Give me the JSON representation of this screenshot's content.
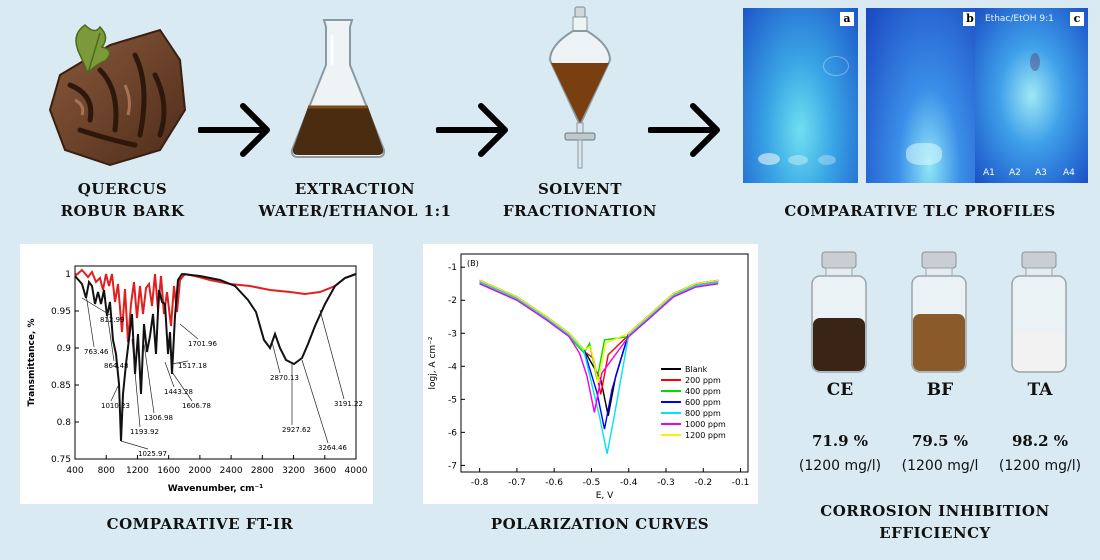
{
  "steps": [
    {
      "line1": "QUERCUS",
      "line2": "ROBUR BARK"
    },
    {
      "line1": "EXTRACTION",
      "line2": "WATER/ETHANOL 1:1"
    },
    {
      "line1": "SOLVENT",
      "line2": "FRACTIONATION"
    }
  ],
  "tlc": {
    "caption": "COMPARATIVE TLC PROFILES",
    "panels": [
      "a",
      "b",
      "c"
    ],
    "solvent": "Ethac/EtOH  9:1",
    "lanes": [
      "A1",
      "A2",
      "A3",
      "A4"
    ]
  },
  "ftir": {
    "caption": "COMPARATIVE FT-IR",
    "xlabel": "Wavenumber, cm⁻¹",
    "ylabel": "Transmittance, %",
    "xticks": [
      "400",
      "800",
      "1200",
      "1600",
      "2000",
      "2400",
      "2800",
      "3200",
      "3600",
      "4000"
    ],
    "yticks": [
      "1",
      "0.95",
      "0.9",
      "0.85",
      "0.8",
      "0.75"
    ],
    "annotations": [
      "812.99",
      "763.46",
      "864.48",
      "1010.23",
      "1193.92",
      "1306.98",
      "1025.97",
      "1443.28",
      "1517.18",
      "1606.78",
      "1701.96",
      "2870.13",
      "2927.62",
      "3264.46",
      "3191.22"
    ],
    "colors": {
      "black": "#111111",
      "red": "#e02020"
    }
  },
  "polar": {
    "caption": "POLARIZATION CURVES",
    "panel": "(B)",
    "xlabel": "E, V",
    "ylabel": "logj, A cm⁻²",
    "xticks": [
      "-0.8",
      "-0.7",
      "-0.6",
      "-0.5",
      "-0.4",
      "-0.3",
      "-0.2",
      "-0.1"
    ],
    "yticks": [
      "-1",
      "-2",
      "-3",
      "-4",
      "-5",
      "-6",
      "-7"
    ],
    "legend": [
      {
        "name": "Blank",
        "color": "#000000"
      },
      {
        "name": "200 ppm",
        "color": "#ff0000"
      },
      {
        "name": "400 ppm",
        "color": "#00dd00"
      },
      {
        "name": "600 ppm",
        "color": "#0000ff"
      },
      {
        "name": "800 ppm",
        "color": "#00e5ee"
      },
      {
        "name": "1000 ppm",
        "color": "#ee00ee"
      },
      {
        "name": "1200 ppm",
        "color": "#ffee00"
      }
    ]
  },
  "inhibition": {
    "caption_line1": "CORROSION INHIBITION",
    "caption_line2": "EFFICIENCY",
    "samples": [
      {
        "label": "CE",
        "value": "71.9",
        "unit": "%",
        "conc": "(1200 mg/l)",
        "powder": "#3a2416"
      },
      {
        "label": "BF",
        "value": "79.5",
        "unit": "%",
        "conc": "(1200 mg/l",
        "powder": "#8a5a2a"
      },
      {
        "label": "TA",
        "value": "98.2",
        "unit": "%",
        "conc": "(1200 mg/l)",
        "powder": "#f2f2f2"
      }
    ]
  }
}
